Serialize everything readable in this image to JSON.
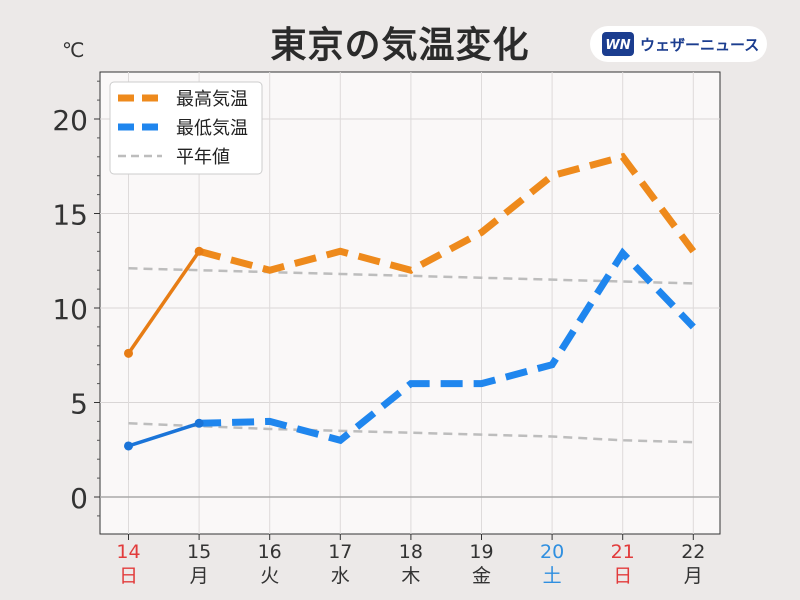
{
  "title": "東京の気温変化",
  "unit": "℃",
  "brand": {
    "name": "ウェザーニュース",
    "logo_text": "WN",
    "icon": "weathernews-logo"
  },
  "colors": {
    "max": "#ee8a1c",
    "max_solid": "#e77d15",
    "min": "#1f86ee",
    "min_solid": "#1a74d8",
    "normal": "#bdbdbd",
    "weekday": "#333333",
    "sunday": "#e23b3b",
    "saturday": "#2f8fe0"
  },
  "chart_data": {
    "type": "line",
    "title": "東京の気温変化",
    "ylabel": "℃",
    "ylim": [
      -2,
      22.5
    ],
    "yticks": [
      "0",
      "5",
      "10",
      "15",
      "20"
    ],
    "grid": true,
    "legend_position": "top-left",
    "categories": [
      "14",
      "15",
      "16",
      "17",
      "18",
      "19",
      "20",
      "21",
      "22"
    ],
    "weekdays": [
      "日",
      "月",
      "火",
      "水",
      "木",
      "金",
      "土",
      "日",
      "月"
    ],
    "day_types": [
      "sunday",
      "weekday",
      "weekday",
      "weekday",
      "weekday",
      "weekday",
      "saturday",
      "sunday",
      "weekday"
    ],
    "series": [
      {
        "name": "最高気温",
        "key": "max",
        "values": [
          7.6,
          13.0,
          12.0,
          13.0,
          12.0,
          14.0,
          17.0,
          18.0,
          13.0
        ],
        "observed_until": 1
      },
      {
        "name": "最低気温",
        "key": "min",
        "values": [
          2.7,
          3.9,
          4.0,
          3.0,
          6.0,
          6.0,
          7.0,
          12.9,
          9.0
        ],
        "observed_until": 1
      },
      {
        "name": "平年値",
        "key": "normal_max",
        "values": [
          12.1,
          12.0,
          11.9,
          11.8,
          11.7,
          11.6,
          11.5,
          11.4,
          11.3
        ]
      },
      {
        "name": "平年値",
        "key": "normal_min",
        "values": [
          3.9,
          3.75,
          3.6,
          3.5,
          3.4,
          3.3,
          3.2,
          3.0,
          2.9
        ]
      }
    ]
  }
}
